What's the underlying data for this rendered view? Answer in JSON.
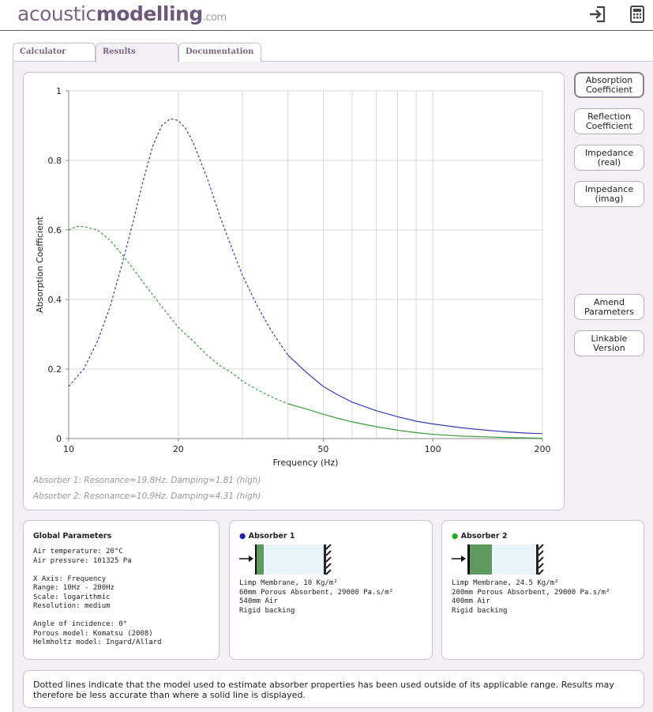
{
  "header": {
    "logo_main": "acoustic",
    "logo_bold": "modelling",
    "logo_suffix": ".com",
    "icons": [
      "login-icon",
      "calculator-icon"
    ]
  },
  "tabs": [
    {
      "label": "Calculator",
      "active": false
    },
    {
      "label": "Results",
      "active": true
    },
    {
      "label": "Documentation",
      "active": false
    }
  ],
  "side_buttons": [
    {
      "label": "Absorption\nCoefficient",
      "active": true
    },
    {
      "label": "Reflection\nCoefficient",
      "active": false
    },
    {
      "label": "Impedance\n(real)",
      "active": false
    },
    {
      "label": "Impedance\n(imag)",
      "active": false
    },
    {
      "label": "Amend\nParameters",
      "active": false
    },
    {
      "label": "Linkable\nVersion",
      "active": false
    }
  ],
  "chart_data": {
    "type": "line",
    "xlabel": "Frequency (Hz)",
    "ylabel": "Absorption Coefficient",
    "xscale": "log",
    "xlim": [
      10,
      200
    ],
    "ylim": [
      0,
      1
    ],
    "xticks": [
      10,
      20,
      50,
      100,
      200
    ],
    "yticks": [
      0,
      0.2,
      0.4,
      0.6,
      0.8,
      1
    ],
    "ytick_labels": [
      "0",
      "0.2",
      "0.4",
      "0.6",
      "0.8",
      "1"
    ],
    "grid": true,
    "series": [
      {
        "color": "#3b3bb5",
        "dotted_below_hz": 40,
        "x": [
          10,
          11,
          12,
          13,
          14,
          15,
          16,
          17,
          18,
          19,
          20,
          21,
          22,
          24,
          26,
          28,
          30,
          33,
          36,
          40,
          45,
          50,
          55,
          60,
          70,
          80,
          90,
          100,
          120,
          140,
          160,
          180,
          200
        ],
        "y": [
          0.15,
          0.2,
          0.28,
          0.38,
          0.5,
          0.62,
          0.74,
          0.84,
          0.9,
          0.92,
          0.915,
          0.89,
          0.85,
          0.75,
          0.64,
          0.55,
          0.47,
          0.38,
          0.31,
          0.24,
          0.19,
          0.15,
          0.125,
          0.105,
          0.08,
          0.063,
          0.05,
          0.042,
          0.031,
          0.024,
          0.019,
          0.016,
          0.014
        ]
      },
      {
        "color": "#3d9a3d",
        "dotted_below_hz": 40,
        "x": [
          10,
          10.5,
          11,
          12,
          13,
          14,
          15,
          16,
          18,
          20,
          22,
          24,
          26,
          28,
          30,
          33,
          36,
          40,
          45,
          50,
          55,
          60,
          70,
          80,
          90,
          100,
          120,
          140,
          160,
          180,
          200
        ],
        "y": [
          0.6,
          0.61,
          0.61,
          0.6,
          0.57,
          0.53,
          0.49,
          0.45,
          0.38,
          0.32,
          0.28,
          0.24,
          0.21,
          0.19,
          0.165,
          0.14,
          0.12,
          0.1,
          0.085,
          0.07,
          0.058,
          0.048,
          0.034,
          0.024,
          0.017,
          0.012,
          0.007,
          0.005,
          0.003,
          0.002,
          0.001
        ]
      }
    ]
  },
  "notes": [
    "Absorber 1: Resonance=19.8Hz. Damping=1.81 (high)",
    "Absorber 2: Resonance=10.9Hz. Damping=4.31 (high)"
  ],
  "global_params": {
    "title": "Global Parameters",
    "lines": [
      "Air temperature: 20°C",
      "Air pressure: 101325 Pa",
      "",
      "X Axis: Frequency",
      "Range: 10Hz - 200Hz",
      "Scale: logarithmic",
      "Resolution: medium",
      "",
      "Angle of incidence: 0°",
      "Porous model: Komatsu (2008)",
      "Helmholtz model: Ingard/Allard"
    ]
  },
  "absorber1": {
    "title": "Absorber 1",
    "bullet_color": "#2222aa",
    "lines": [
      "Limp Membrane, 10 Kg/m²",
      "60mm Porous Absorbent, 29000 Pa.s/m²",
      "540mm Air",
      "Rigid backing"
    ]
  },
  "absorber2": {
    "title": "Absorber 2",
    "bullet_color": "#22aa22",
    "lines": [
      "Limp Membrane, 24.5 Kg/m²",
      "200mm Porous Absorbent, 29000 Pa.s/m²",
      "400mm Air",
      "Rigid backing"
    ]
  },
  "footnote": "Dotted lines indicate that the model used to estimate absorber properties has been used outside of its applicable range. Results may therefore be less accurate than where a solid line is displayed."
}
